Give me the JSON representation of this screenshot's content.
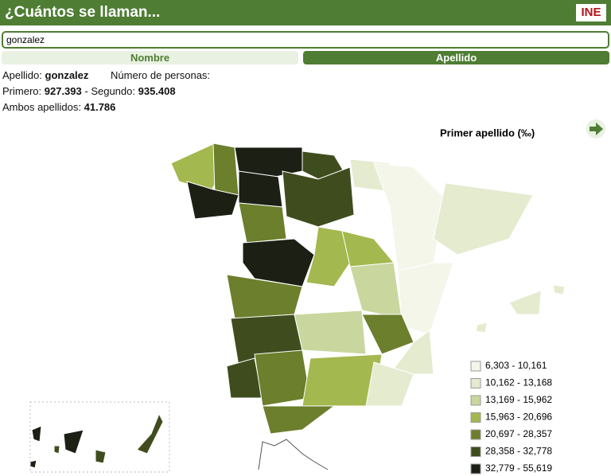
{
  "header": {
    "title": "¿Cuántos se llaman...",
    "logo": "INE"
  },
  "search": {
    "value": "gonzalez"
  },
  "tabs": [
    "Nombre",
    "Apellido"
  ],
  "info": {
    "surname_label": "Apellido:",
    "surname": "gonzalez",
    "persons_label": "Número de personas:",
    "first_label": "Primero:",
    "first": "927.393",
    "second_label": "- Segundo:",
    "second": "935.408",
    "both_label": "Ambos apellidos:",
    "both": "41.786"
  },
  "map": {
    "title": "Primer apellido (‰)",
    "legend": [
      {
        "label": "6,303 - 10,161",
        "color": "#f4f6ea"
      },
      {
        "label": "10,162 - 13,168",
        "color": "#e4ebcf"
      },
      {
        "label": "13,169 - 15,962",
        "color": "#c9d79e"
      },
      {
        "label": "15,963 - 20,696",
        "color": "#a3b84e"
      },
      {
        "label": "20,697 - 28,357",
        "color": "#6b7f2c"
      },
      {
        "label": "28,358 - 32,778",
        "color": "#3f4d1e"
      },
      {
        "label": "32,779 - 55,619",
        "color": "#1c1f14"
      }
    ]
  }
}
